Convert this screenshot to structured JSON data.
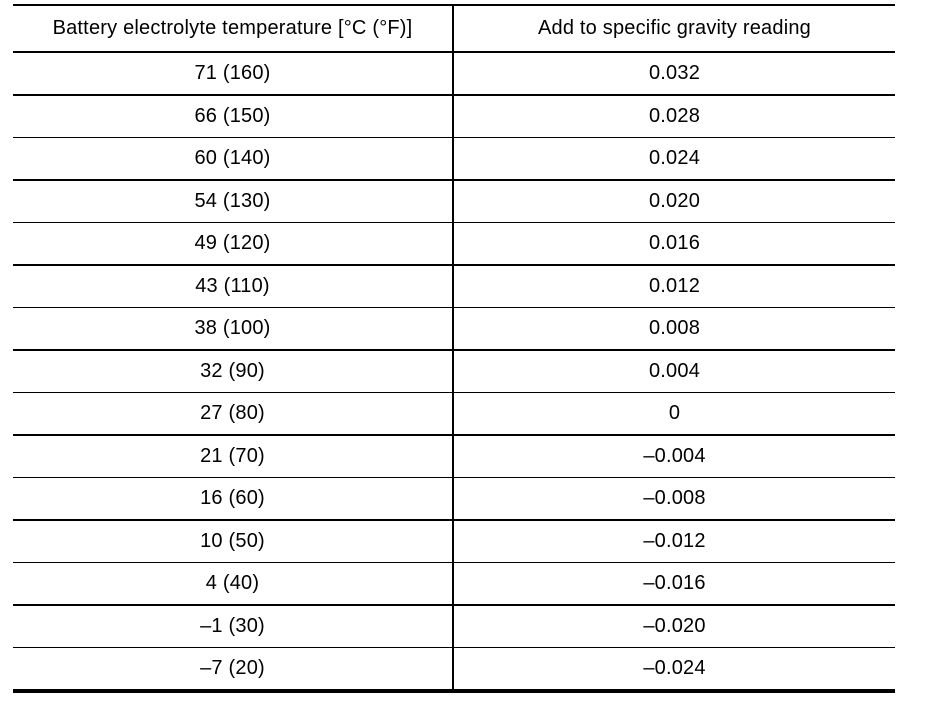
{
  "table": {
    "headers": {
      "temperature": "Battery electrolyte temperature [°C (°F)]",
      "correction": "Add to specific gravity reading"
    },
    "rows": [
      {
        "temperature": "71 (160)",
        "correction": "0.032"
      },
      {
        "temperature": "66 (150)",
        "correction": "0.028"
      },
      {
        "temperature": "60 (140)",
        "correction": "0.024"
      },
      {
        "temperature": "54 (130)",
        "correction": "0.020"
      },
      {
        "temperature": "49 (120)",
        "correction": "0.016"
      },
      {
        "temperature": "43 (110)",
        "correction": "0.012"
      },
      {
        "temperature": "38 (100)",
        "correction": "0.008"
      },
      {
        "temperature": "32 (90)",
        "correction": "0.004"
      },
      {
        "temperature": "27 (80)",
        "correction": "0"
      },
      {
        "temperature": "21 (70)",
        "correction": "–0.004"
      },
      {
        "temperature": "16 (60)",
        "correction": "–0.008"
      },
      {
        "temperature": "10 (50)",
        "correction": "–0.012"
      },
      {
        "temperature": "4 (40)",
        "correction": "–0.016"
      },
      {
        "temperature": "–1 (30)",
        "correction": "–0.020"
      },
      {
        "temperature": "–7 (20)",
        "correction": "–0.024"
      }
    ]
  },
  "chart_data": {
    "type": "table",
    "columns": [
      "Battery electrolyte temperature [°C (°F)]",
      "Add to specific gravity reading"
    ],
    "temperature_celsius": [
      71,
      66,
      60,
      54,
      49,
      43,
      38,
      32,
      27,
      21,
      16,
      10,
      4,
      -1,
      -7
    ],
    "temperature_fahrenheit": [
      160,
      150,
      140,
      130,
      120,
      110,
      100,
      90,
      80,
      70,
      60,
      50,
      40,
      30,
      20
    ],
    "gravity_correction": [
      0.032,
      0.028,
      0.024,
      0.02,
      0.016,
      0.012,
      0.008,
      0.004,
      0,
      -0.004,
      -0.008,
      -0.012,
      -0.016,
      -0.02,
      -0.024
    ],
    "line_color": "#000000",
    "background_color": "#ffffff"
  }
}
